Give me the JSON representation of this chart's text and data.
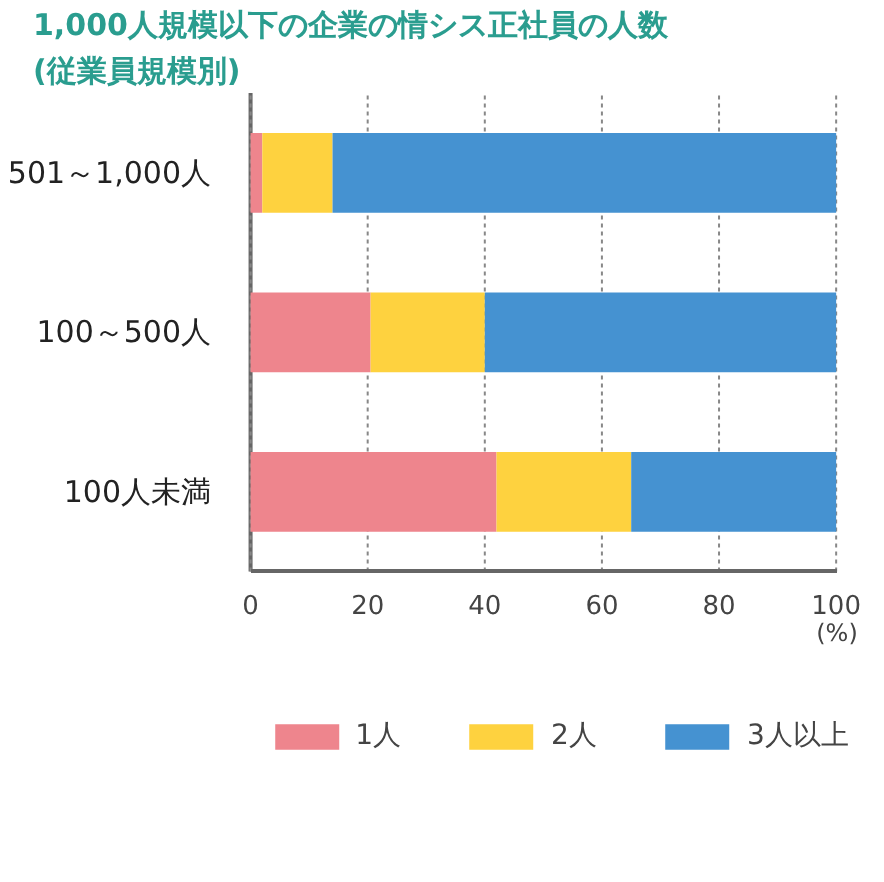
{
  "chart_data": {
    "type": "bar",
    "orientation": "horizontal",
    "stacked": true,
    "title": "1,000人規模以下の企業の情シス正社員の人数",
    "subtitle": "(従業員規模別)",
    "xlabel": "(%)",
    "categories": [
      "501～1,000人",
      "100～500人",
      "100人未満"
    ],
    "series": [
      {
        "name": "1人",
        "color": "#ee858d",
        "values": [
          2,
          20.5,
          42
        ]
      },
      {
        "name": "2人",
        "color": "#fed23f",
        "values": [
          12,
          19.5,
          23
        ]
      },
      {
        "name": "3人以上",
        "color": "#4592d1",
        "values": [
          86,
          60,
          35
        ]
      }
    ],
    "xlim": [
      0,
      100
    ],
    "xticks": [
      0,
      20,
      40,
      60,
      80,
      100
    ],
    "grid": "x",
    "legend": "bottom"
  }
}
